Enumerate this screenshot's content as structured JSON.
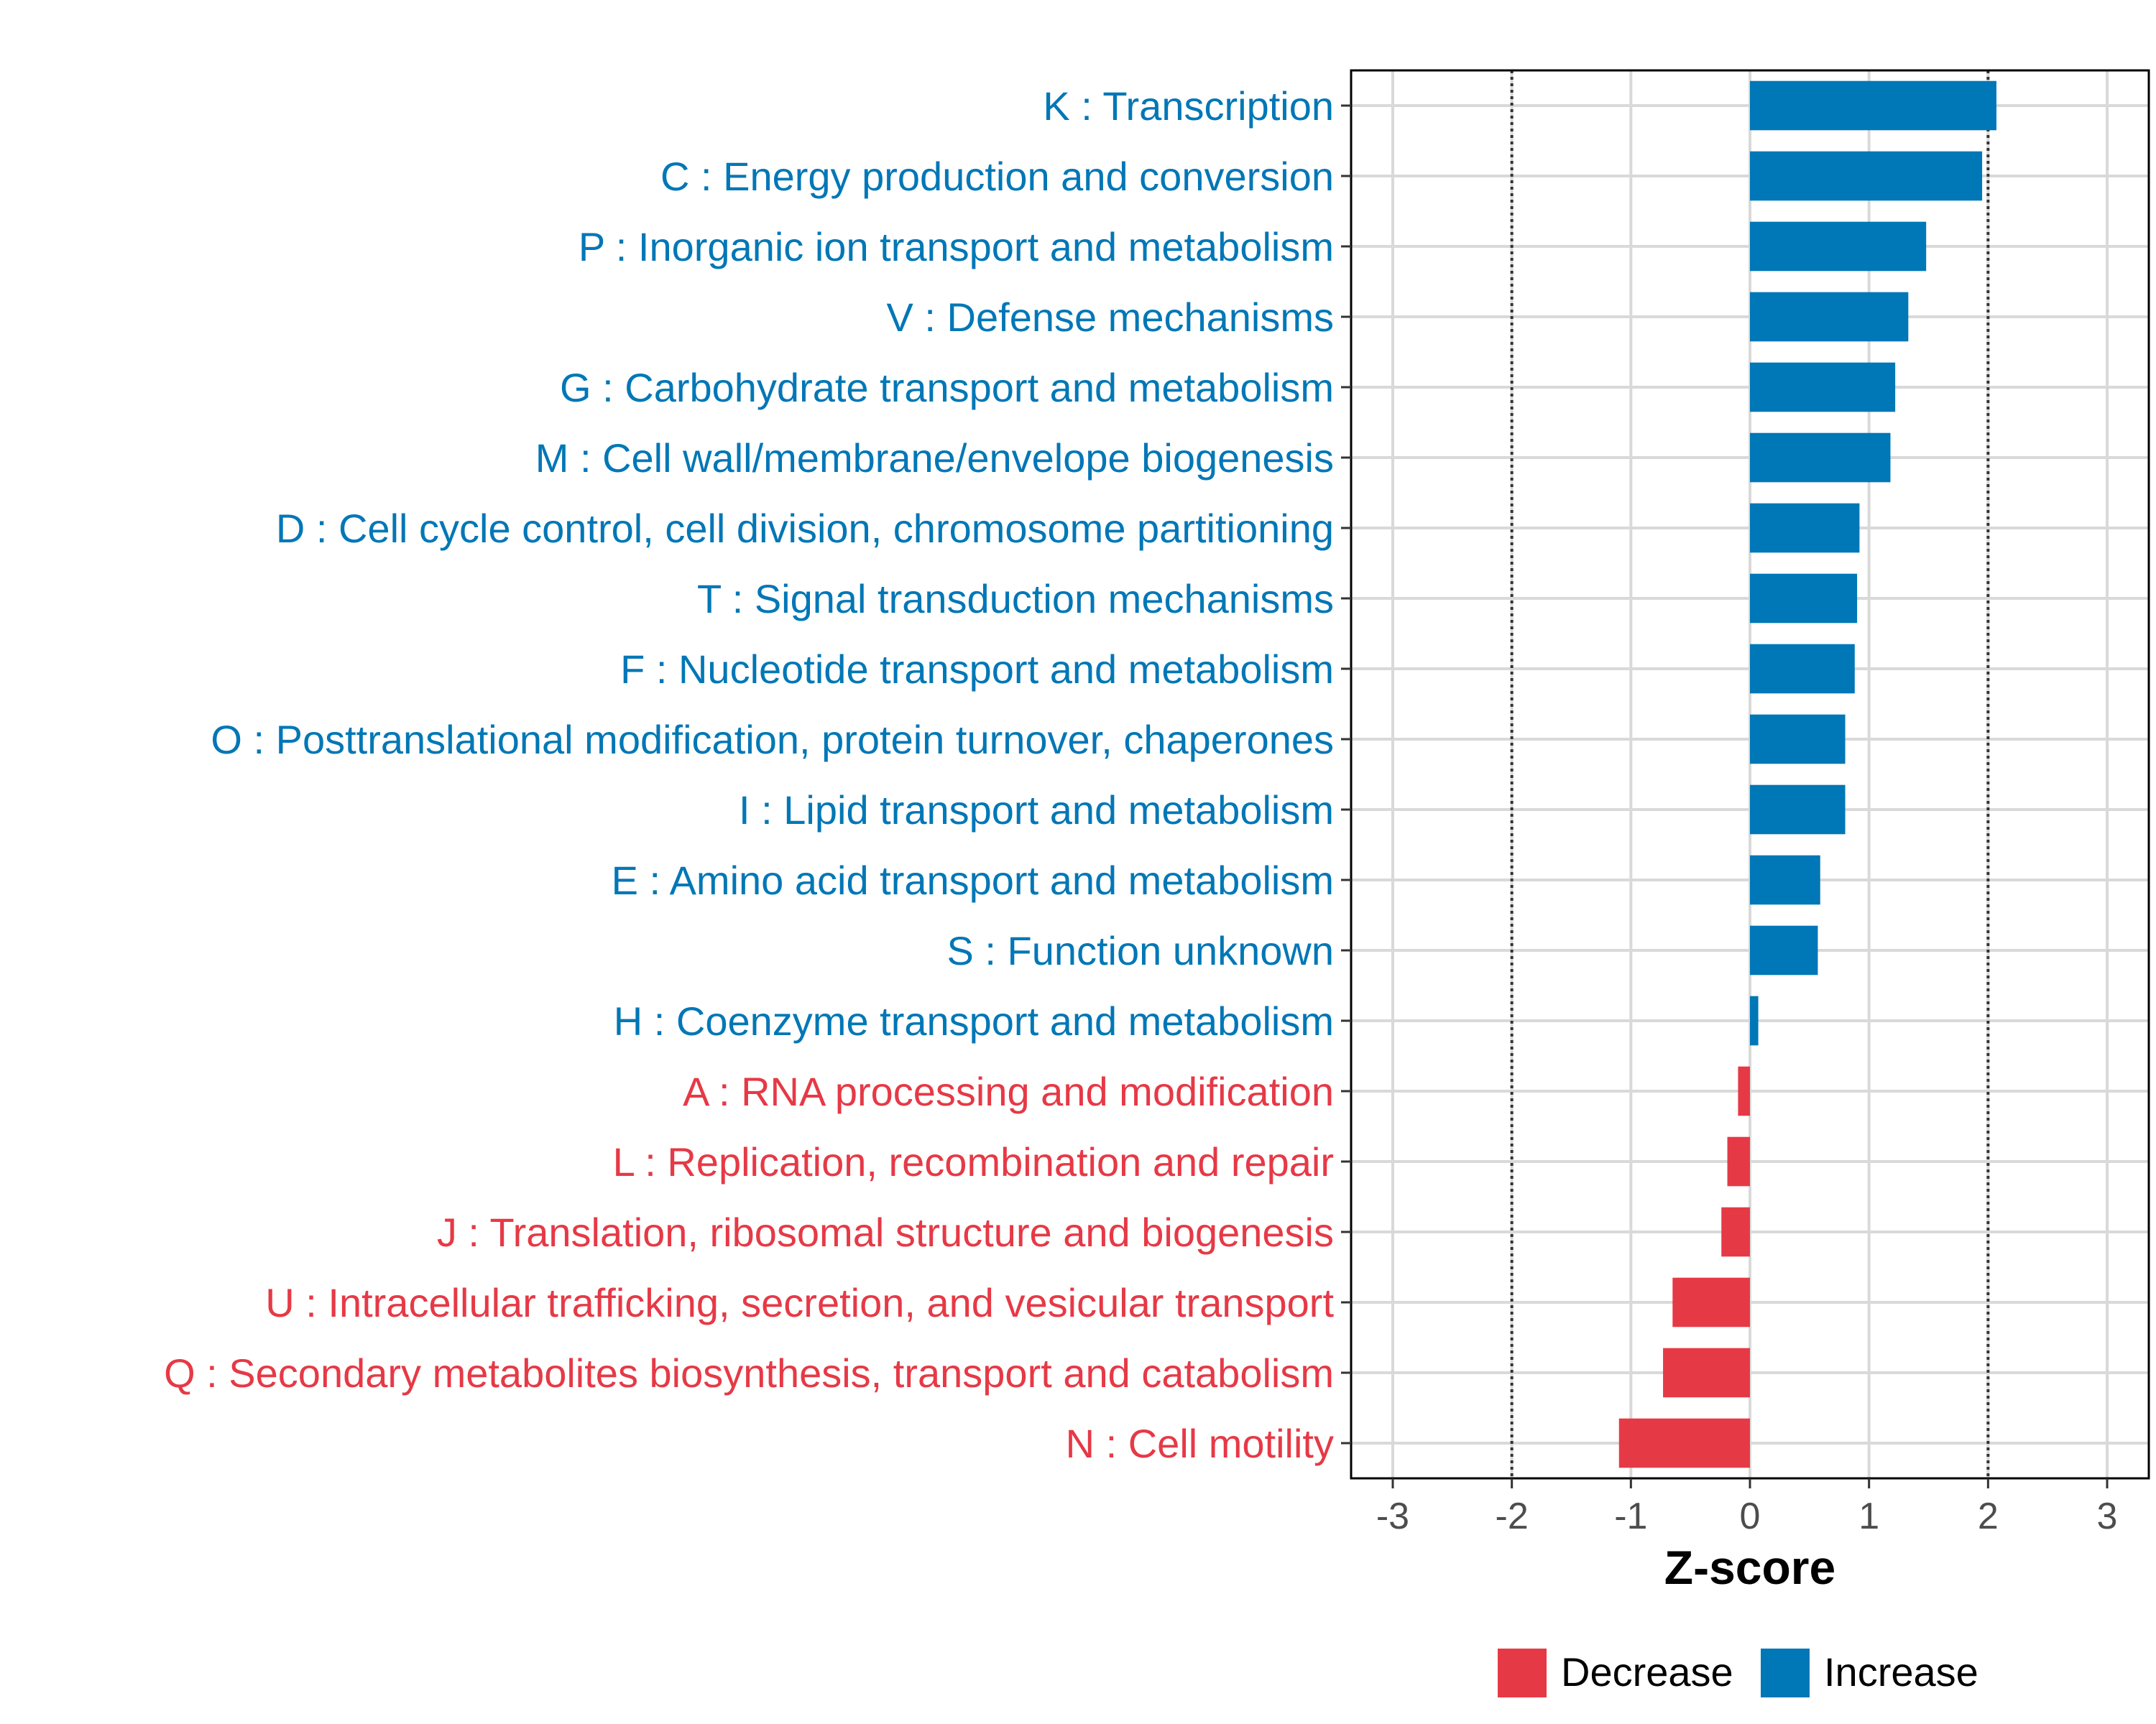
{
  "chart_data": {
    "type": "bar",
    "orientation": "horizontal",
    "xlabel": "Z-score",
    "xlim": [
      -3.35,
      3.35
    ],
    "x_ticks": [
      -3,
      -2,
      -1,
      0,
      1,
      2,
      3
    ],
    "reference_lines": [
      -2,
      2
    ],
    "grid": true,
    "legend_position": "bottom",
    "colors": {
      "Decrease": "#e63946",
      "Increase": "#0077b6"
    },
    "legend": [
      {
        "label": "Decrease",
        "color": "#e63946"
      },
      {
        "label": "Increase",
        "color": "#0077b6"
      }
    ],
    "categories": [
      "K : Transcription",
      "C : Energy production and conversion",
      "P : Inorganic ion transport and metabolism",
      "V : Defense mechanisms",
      "G : Carbohydrate transport and metabolism",
      "M : Cell wall/membrane/envelope biogenesis",
      "D : Cell cycle control, cell division, chromosome partitioning",
      "T : Signal transduction mechanisms",
      "F : Nucleotide transport and metabolism",
      "O : Posttranslational modification, protein turnover, chaperones",
      "I : Lipid transport and metabolism",
      "E : Amino acid transport and metabolism",
      "S : Function unknown",
      "H : Coenzyme transport and metabolism",
      "A : RNA processing and modification",
      "L : Replication, recombination and repair",
      "J : Translation, ribosomal structure and biogenesis",
      "U : Intracellular trafficking, secretion, and vesicular transport",
      "Q : Secondary metabolites biosynthesis, transport and catabolism",
      "N : Cell motility"
    ],
    "values": [
      2.07,
      1.95,
      1.48,
      1.33,
      1.22,
      1.18,
      0.92,
      0.9,
      0.88,
      0.8,
      0.8,
      0.59,
      0.57,
      0.07,
      -0.1,
      -0.19,
      -0.24,
      -0.65,
      -0.73,
      -1.1
    ],
    "groups": [
      "Increase",
      "Increase",
      "Increase",
      "Increase",
      "Increase",
      "Increase",
      "Increase",
      "Increase",
      "Increase",
      "Increase",
      "Increase",
      "Increase",
      "Increase",
      "Increase",
      "Decrease",
      "Decrease",
      "Decrease",
      "Decrease",
      "Decrease",
      "Decrease"
    ]
  }
}
